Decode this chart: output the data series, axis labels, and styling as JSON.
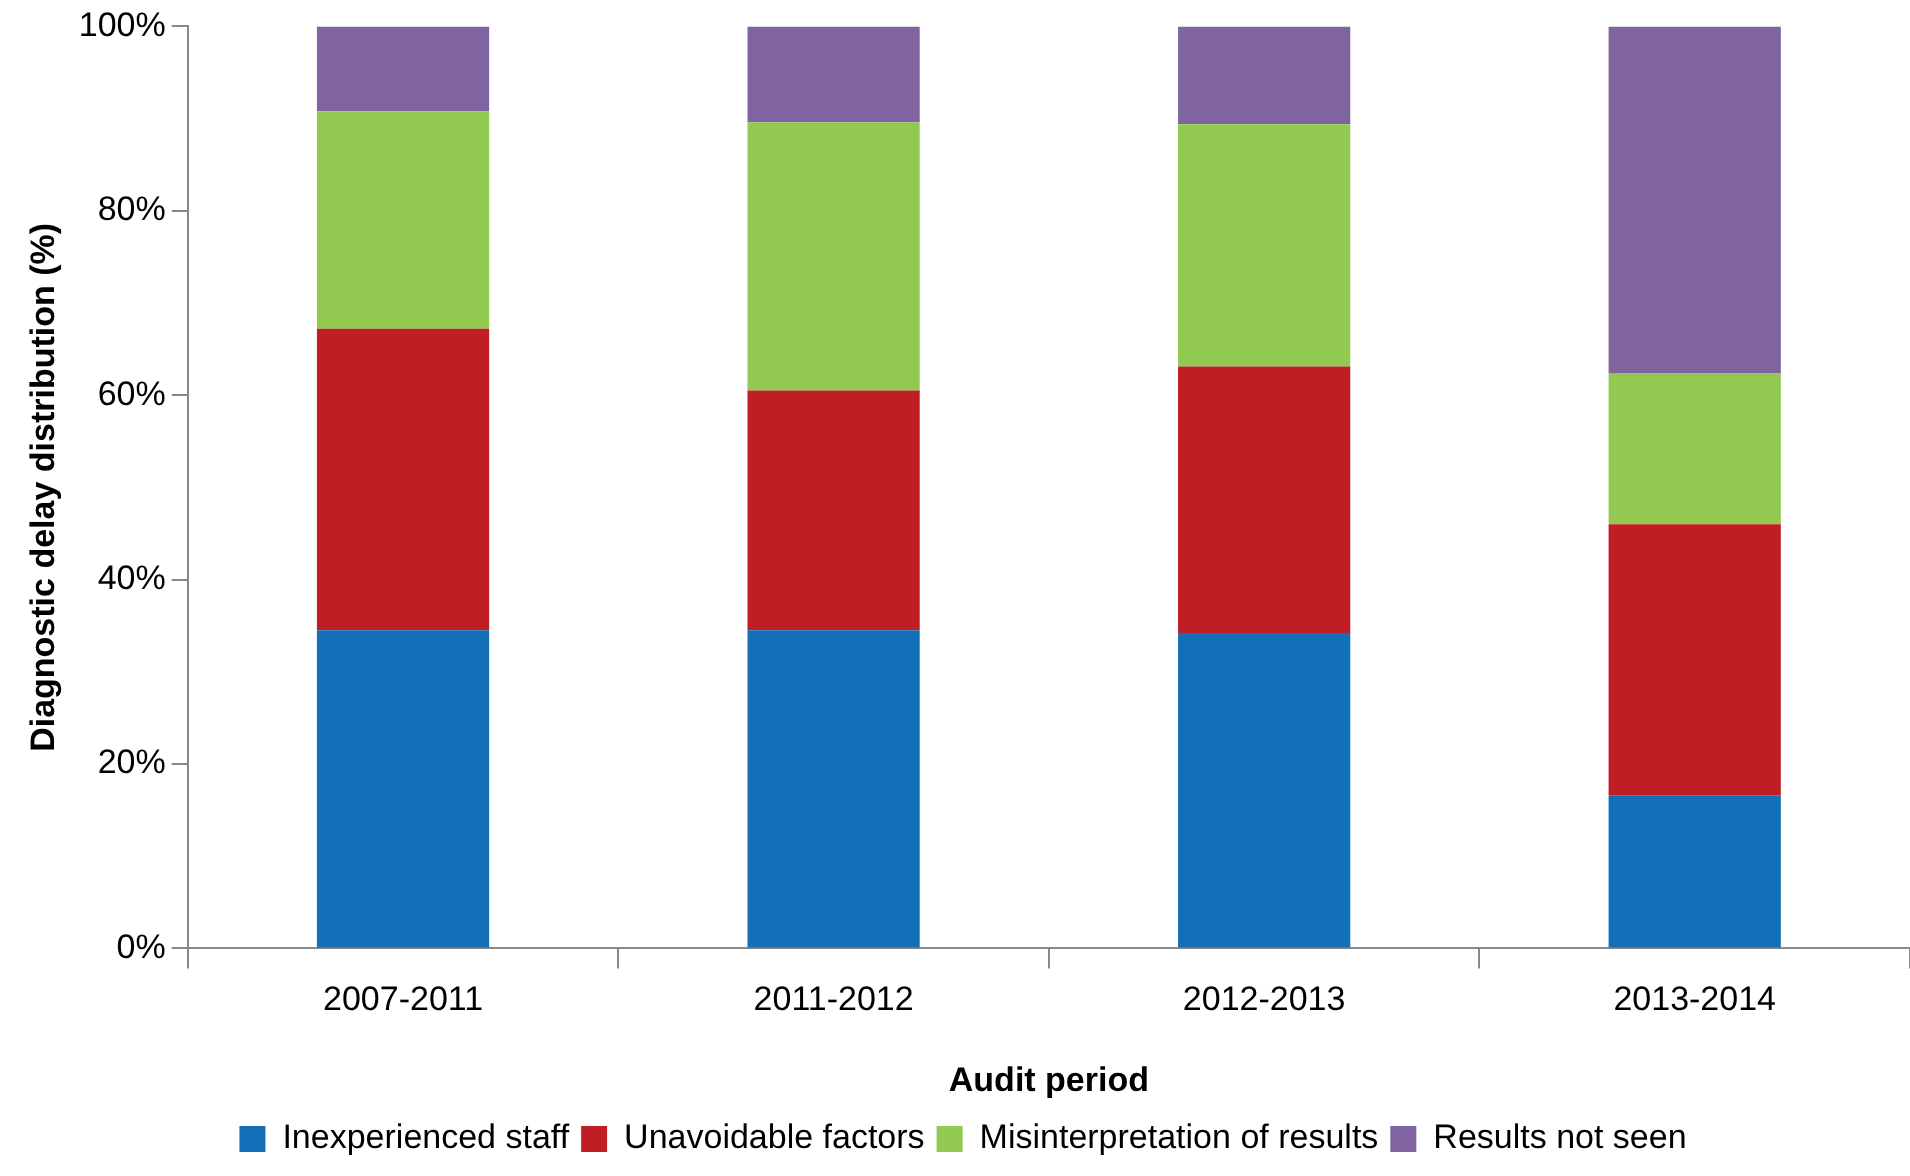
{
  "chart_data": {
    "type": "bar",
    "stacked": true,
    "xlabel": "Audit period",
    "ylabel": "Diagnostic delay distribution (%)",
    "categories": [
      "2007-2011",
      "2011-2012",
      "2012-2013",
      "2013-2014"
    ],
    "series": [
      {
        "name": "Inexperienced staff",
        "color": "#1170b8",
        "values": [
          34.5,
          34.5,
          34.2,
          16.6
        ]
      },
      {
        "name": "Unavoidable factors",
        "color": "#be1e24",
        "values": [
          32.7,
          26.0,
          28.9,
          29.4
        ]
      },
      {
        "name": "Misinterpretation of results",
        "color": "#92c950",
        "values": [
          23.6,
          29.1,
          26.3,
          16.4
        ]
      },
      {
        "name": "Results not seen",
        "color": "#8064a2",
        "values": [
          9.2,
          10.4,
          10.6,
          37.6
        ]
      }
    ],
    "ylim": [
      0,
      100
    ],
    "yticks": [
      {
        "value": 0,
        "label": "0%"
      },
      {
        "value": 20,
        "label": "20%"
      },
      {
        "value": 40,
        "label": "40%"
      },
      {
        "value": 60,
        "label": "60%"
      },
      {
        "value": 80,
        "label": "80%"
      },
      {
        "value": 100,
        "label": "100%"
      }
    ],
    "grid": false,
    "legend": "bottom"
  }
}
